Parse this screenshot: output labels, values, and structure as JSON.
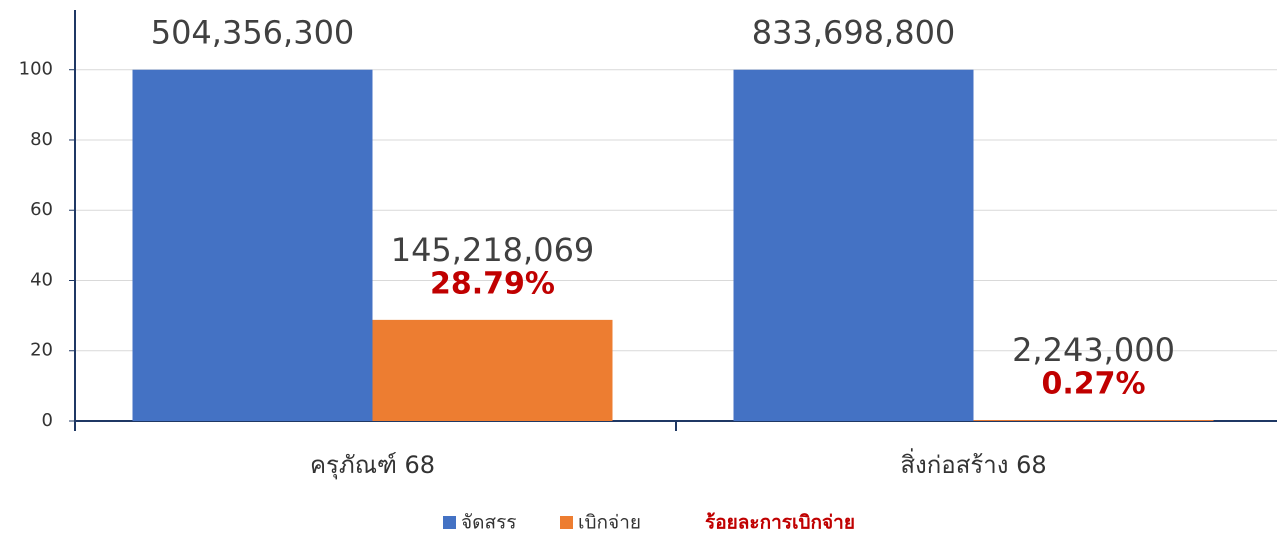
{
  "chart_data": {
    "type": "bar",
    "categories": [
      "ครุภัณฑ์ 68",
      "สิ่งก่อสร้าง 68"
    ],
    "series": [
      {
        "name": "จัดสรร",
        "color": "#4472c4",
        "values": [
          100,
          100
        ],
        "amounts": [
          "504,356,300",
          "833,698,800"
        ]
      },
      {
        "name": "เบิกจ่าย",
        "color": "#ed7d31",
        "values": [
          28.79,
          0.27
        ],
        "value_labels": [
          "28.79%",
          "0.27%"
        ],
        "amounts": [
          "145,218,069",
          "2,243,000"
        ]
      }
    ],
    "percent_legend": {
      "name": "ร้อยละการเบิกจ่าย",
      "color": "#c00000"
    },
    "ylim": [
      0,
      117
    ],
    "yticks": [
      0,
      20,
      40,
      60,
      80,
      100
    ],
    "grid": true,
    "legend": "bottom"
  }
}
